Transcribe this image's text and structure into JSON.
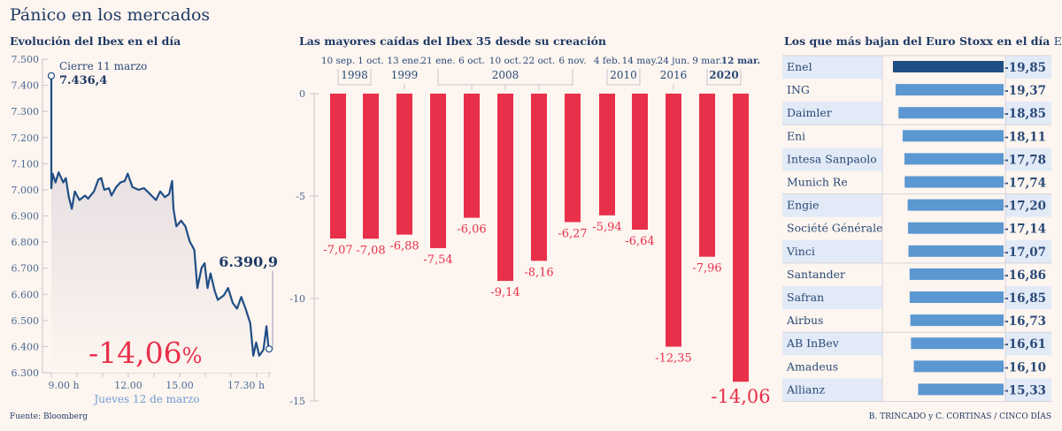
{
  "title": "Pánico en los mercados",
  "source": "Fuente: Bloomberg",
  "credit": "B. TRINCADO y C. CORTINAS / CINCO DÍAS",
  "colors": {
    "navy": "#1f4e85",
    "red": "#e8304b",
    "bar_blue": "#5b97d1",
    "row_blue": "#e2eaf7",
    "text": "#2a4a78"
  },
  "chart_data": [
    {
      "type": "line",
      "title": "Evolución del Ibex en el día",
      "xlabel": "Jueves 12 de marzo",
      "x_ticks": [
        "9.00 h",
        "12.00",
        "15.00",
        "17.30 h"
      ],
      "y_ticks": [
        "7.500",
        "7.400",
        "7.300",
        "7.200",
        "7.100",
        "7.000",
        "6.900",
        "6.800",
        "6.700",
        "6.600",
        "6.500",
        "6.400",
        "6.300"
      ],
      "ylim": [
        6300,
        7500
      ],
      "xlim": [
        "09:00",
        "17:30"
      ],
      "previous_close": {
        "label": "Cierre 11 marzo",
        "value_label": "7.436,4",
        "value": 7436.4
      },
      "close": {
        "value_label": "6.390,9",
        "value": 6390.9
      },
      "change_label": "-14,06",
      "change_unit": "%",
      "points": [
        [
          "09:00",
          7006
        ],
        [
          "09:03",
          7062
        ],
        [
          "09:10",
          7028
        ],
        [
          "09:17",
          7067
        ],
        [
          "09:28",
          7028
        ],
        [
          "09:34",
          7045
        ],
        [
          "09:41",
          6972
        ],
        [
          "09:48",
          6927
        ],
        [
          "09:55",
          6994
        ],
        [
          "10:06",
          6961
        ],
        [
          "10:19",
          6978
        ],
        [
          "10:26",
          6966
        ],
        [
          "10:40",
          6994
        ],
        [
          "10:50",
          7039
        ],
        [
          "10:57",
          7045
        ],
        [
          "11:04",
          7000
        ],
        [
          "11:15",
          7006
        ],
        [
          "11:21",
          6978
        ],
        [
          "11:32",
          7011
        ],
        [
          "11:42",
          7028
        ],
        [
          "11:52",
          7034
        ],
        [
          "11:59",
          7062
        ],
        [
          "12:10",
          7011
        ],
        [
          "12:24",
          7000
        ],
        [
          "12:37",
          7006
        ],
        [
          "12:48",
          6989
        ],
        [
          "13:05",
          6961
        ],
        [
          "13:15",
          6994
        ],
        [
          "13:26",
          6972
        ],
        [
          "13:36",
          6983
        ],
        [
          "13:43",
          7034
        ],
        [
          "13:46",
          6927
        ],
        [
          "13:53",
          6860
        ],
        [
          "14:04",
          6882
        ],
        [
          "14:14",
          6860
        ],
        [
          "14:24",
          6803
        ],
        [
          "14:35",
          6770
        ],
        [
          "14:42",
          6624
        ],
        [
          "14:52",
          6702
        ],
        [
          "14:59",
          6719
        ],
        [
          "15:06",
          6624
        ],
        [
          "15:13",
          6680
        ],
        [
          "15:23",
          6612
        ],
        [
          "15:30",
          6579
        ],
        [
          "15:44",
          6596
        ],
        [
          "15:54",
          6624
        ],
        [
          "16:05",
          6567
        ],
        [
          "16:15",
          6545
        ],
        [
          "16:25",
          6590
        ],
        [
          "16:35",
          6545
        ],
        [
          "16:46",
          6489
        ],
        [
          "16:53",
          6365
        ],
        [
          "17:00",
          6416
        ],
        [
          "17:07",
          6365
        ],
        [
          "17:17",
          6388
        ],
        [
          "17:24",
          6478
        ],
        [
          "17:29",
          6393
        ],
        [
          "17:30",
          6390.9
        ]
      ]
    },
    {
      "type": "bar",
      "title": "Las mayores caídas del Ibex 35 desde su creación",
      "ylim": [
        -15,
        0
      ],
      "y_ticks": [
        "0",
        "-5",
        "-10",
        "-15"
      ],
      "categories": [
        "10 sep.",
        "1 oct.",
        "13 ene.",
        "21 ene.",
        "6 oct.",
        "10 oct.",
        "22 oct.",
        "6 nov.",
        "4 feb.",
        "14 may.",
        "24 jun.",
        "9 mar.",
        "12 mar."
      ],
      "values": [
        -7.07,
        -7.08,
        -6.88,
        -7.54,
        -6.06,
        -9.14,
        -8.16,
        -6.27,
        -5.94,
        -6.64,
        -12.35,
        -7.96,
        -14.06
      ],
      "value_labels": [
        "-7,07",
        "-7,08",
        "-6,88",
        "-7,54",
        "-6,06",
        "-9,14",
        "-8,16",
        "-6,27",
        "-5,94",
        "-6,64",
        "-12,35",
        "-7,96",
        "-14,06"
      ],
      "years": [
        {
          "label": "1998",
          "from": 0,
          "to": 1
        },
        {
          "label": "1999",
          "from": 2,
          "to": 2
        },
        {
          "label": "2008",
          "from": 3,
          "to": 7
        },
        {
          "label": "2010",
          "from": 8,
          "to": 9
        },
        {
          "label": "2016",
          "from": 10,
          "to": 10
        },
        {
          "label": "2020",
          "from": 11,
          "to": 12,
          "bold": true
        }
      ]
    },
    {
      "type": "bar",
      "orientation": "horizontal",
      "title": "Los que más bajan del Euro Stoxx en el día",
      "unit_label": "En %",
      "categories": [
        "Enel",
        "ING",
        "Daimler",
        "Eni",
        "Intesa Sanpaolo",
        "Munich Re",
        "Engie",
        "Société Générale",
        "Vinci",
        "Santander",
        "Safran",
        "Airbus",
        "AB InBev",
        "Amadeus",
        "Allianz"
      ],
      "values": [
        -19.85,
        -19.37,
        -18.85,
        -18.11,
        -17.78,
        -17.74,
        -17.2,
        -17.14,
        -17.07,
        -16.86,
        -16.85,
        -16.73,
        -16.61,
        -16.1,
        -15.33
      ],
      "value_labels": [
        "-19,85",
        "-19,37",
        "-18,85",
        "-18,11",
        "-17,78",
        "-17,74",
        "-17,20",
        "-17,14",
        "-17,07",
        "-16,86",
        "-16,85",
        "-16,73",
        "-16,61",
        "-16,10",
        "-15,33"
      ],
      "highlight": "Enel"
    }
  ]
}
